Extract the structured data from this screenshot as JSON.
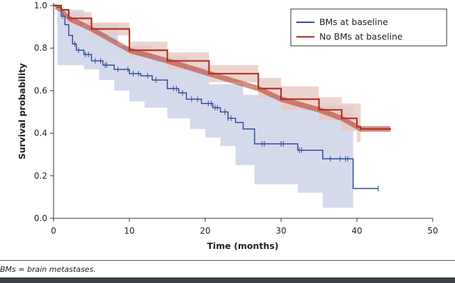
{
  "chart_data": {
    "type": "line",
    "title": "",
    "xlabel": "Time (months)",
    "ylabel": "Survival probability",
    "xlim": [
      0,
      50
    ],
    "ylim": [
      0,
      1.0
    ],
    "xticks": [
      "0",
      "10",
      "20",
      "30",
      "40",
      "50"
    ],
    "yticks": [
      "0.0",
      "0.2",
      "0.4",
      "0.6",
      "0.8",
      "1.0"
    ],
    "grid": false,
    "legend_position": "top-right",
    "series": [
      {
        "name": "BMs at baseline",
        "color": "#2f4a9a",
        "band_color": "#d5d9ec",
        "step": [
          [
            0,
            1.0
          ],
          [
            0.5,
            0.99
          ],
          [
            1,
            0.95
          ],
          [
            1.5,
            0.91
          ],
          [
            2,
            0.86
          ],
          [
            2.5,
            0.82
          ],
          [
            3,
            0.79
          ],
          [
            4,
            0.77
          ],
          [
            5,
            0.74
          ],
          [
            6.5,
            0.72
          ],
          [
            8,
            0.7
          ],
          [
            10,
            0.68
          ],
          [
            11.5,
            0.67
          ],
          [
            13,
            0.65
          ],
          [
            15,
            0.61
          ],
          [
            16.5,
            0.59
          ],
          [
            17.5,
            0.56
          ],
          [
            19.5,
            0.54
          ],
          [
            21,
            0.52
          ],
          [
            22,
            0.5
          ],
          [
            23,
            0.47
          ],
          [
            24,
            0.45
          ],
          [
            25,
            0.42
          ],
          [
            26.5,
            0.35
          ],
          [
            32.2,
            0.32
          ],
          [
            35.5,
            0.28
          ],
          [
            39.5,
            0.14
          ],
          [
            42.8,
            0.14
          ]
        ],
        "ci_upper": [
          [
            0.5,
            0.98
          ],
          [
            4,
            0.92
          ],
          [
            8.5,
            0.81
          ],
          [
            13,
            0.76
          ],
          [
            17.7,
            0.71
          ],
          [
            20.5,
            0.63
          ],
          [
            25,
            0.58
          ],
          [
            30,
            0.54
          ],
          [
            33,
            0.53
          ],
          [
            39.5,
            0.53
          ]
        ],
        "ci_lower": [
          [
            0.5,
            0.72
          ],
          [
            2.3,
            0.72
          ],
          [
            4,
            0.7
          ],
          [
            6,
            0.65
          ],
          [
            8,
            0.6
          ],
          [
            10,
            0.55
          ],
          [
            12,
            0.52
          ],
          [
            15,
            0.47
          ],
          [
            18,
            0.42
          ],
          [
            20,
            0.38
          ],
          [
            22,
            0.34
          ],
          [
            24,
            0.25
          ],
          [
            26.5,
            0.16
          ],
          [
            32.2,
            0.12
          ],
          [
            35.5,
            0.05
          ],
          [
            39.5,
            0.05
          ]
        ],
        "censored": [
          1.2,
          2.8,
          3.3,
          4.2,
          4.6,
          5.5,
          6.2,
          6.8,
          7.0,
          8.5,
          9.8,
          10.5,
          11.2,
          12.4,
          13.5,
          15.8,
          16.2,
          17.0,
          18.2,
          19.0,
          20.4,
          20.8,
          21.3,
          21.6,
          22.6,
          23.0,
          23.4,
          27.5,
          27.8,
          30.0,
          30.3,
          32.4,
          32.7,
          36.5,
          37.8,
          38.5,
          38.8,
          42.8
        ]
      },
      {
        "name": "No BMs at baseline",
        "color": "#b0311f",
        "band_color": "#e8c8c2",
        "step": [
          [
            0,
            1.0
          ],
          [
            1,
            0.98
          ],
          [
            2,
            0.94
          ],
          [
            5,
            0.89
          ],
          [
            10,
            0.79
          ],
          [
            15,
            0.74
          ],
          [
            20.5,
            0.68
          ],
          [
            27,
            0.61
          ],
          [
            30,
            0.56
          ],
          [
            35,
            0.51
          ],
          [
            38,
            0.47
          ],
          [
            40,
            0.43
          ],
          [
            40.5,
            0.42
          ],
          [
            44.5,
            0.42
          ]
        ],
        "ci_upper": [
          [
            0,
            1.0
          ],
          [
            2,
            0.97
          ],
          [
            5,
            0.92
          ],
          [
            10,
            0.83
          ],
          [
            15,
            0.78
          ],
          [
            20.5,
            0.72
          ],
          [
            27,
            0.66
          ],
          [
            30,
            0.62
          ],
          [
            35,
            0.57
          ],
          [
            38,
            0.54
          ],
          [
            40.5,
            0.52
          ]
        ],
        "ci_lower": [
          [
            0,
            1.0
          ],
          [
            2,
            0.91
          ],
          [
            5,
            0.86
          ],
          [
            10,
            0.76
          ],
          [
            15,
            0.7
          ],
          [
            20.5,
            0.64
          ],
          [
            27,
            0.57
          ],
          [
            30,
            0.51
          ],
          [
            35,
            0.46
          ],
          [
            38,
            0.41
          ],
          [
            40,
            0.36
          ],
          [
            40.5,
            0.33
          ]
        ],
        "censored_range": [
          0.3,
          44.5
        ]
      }
    ]
  },
  "footnote": "BMs = brain metastases."
}
